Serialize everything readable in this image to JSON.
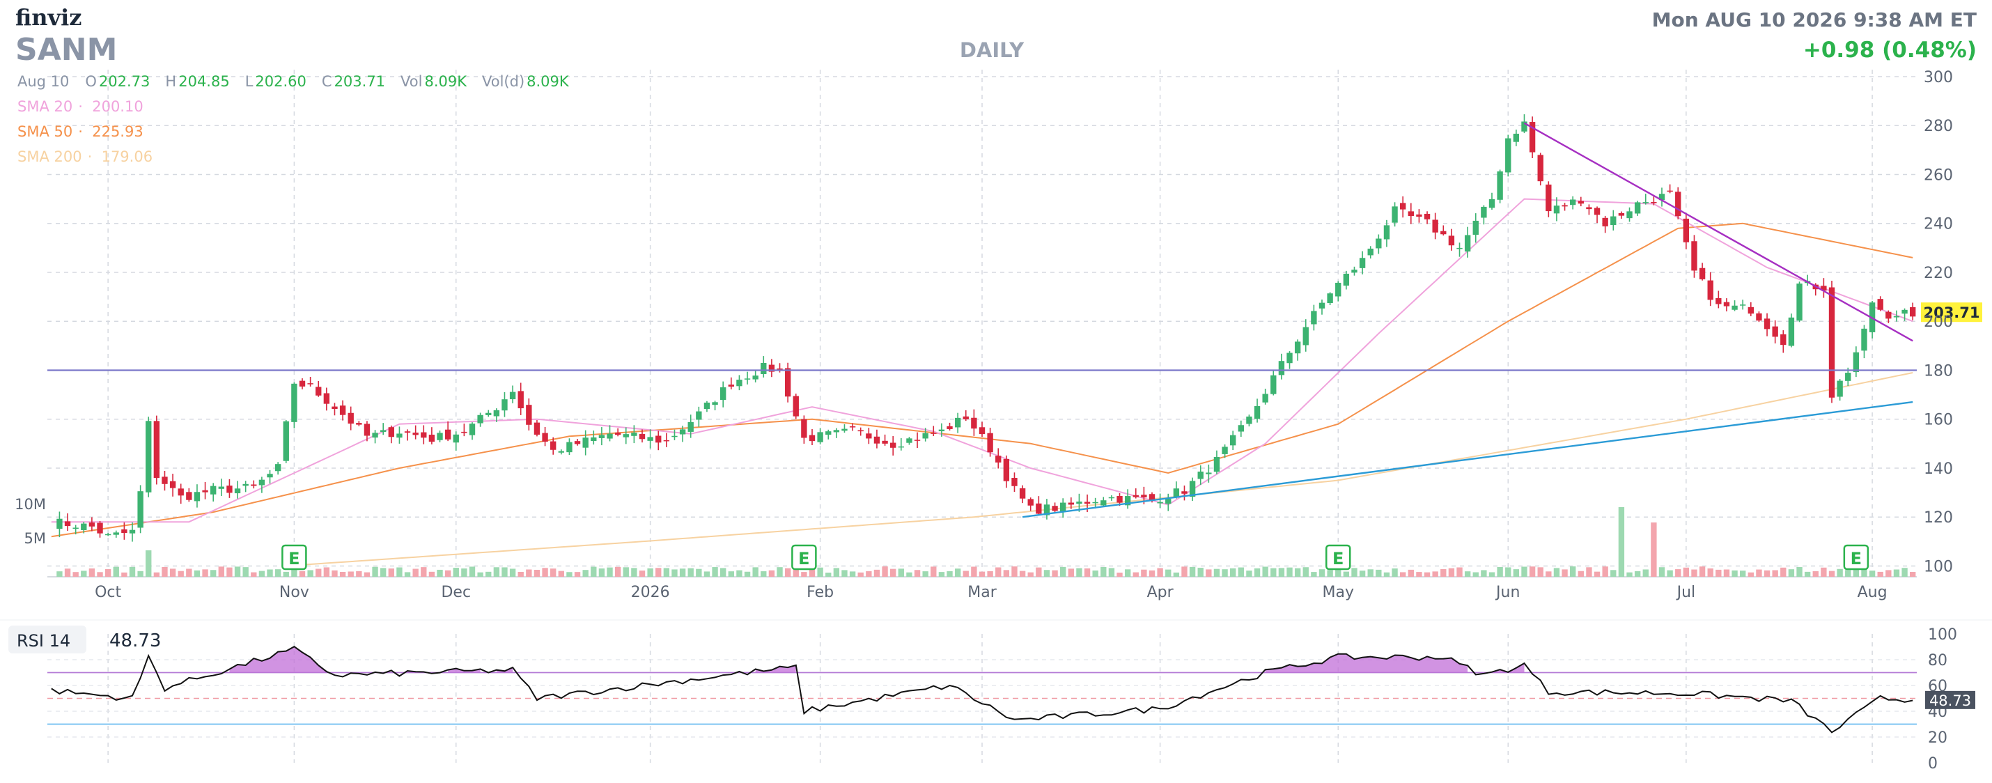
{
  "header": {
    "logo": "finviz",
    "ticker": "SANM",
    "timeframe": "DAILY",
    "datetime": "Mon AUG 10 2026 9:38 AM ET",
    "change": "+0.98 (0.48%)"
  },
  "ohlc": [
    {
      "label": "Aug 10",
      "value": ""
    },
    {
      "label": "O",
      "value": "202.73"
    },
    {
      "label": "H",
      "value": "204.85"
    },
    {
      "label": "L",
      "value": "202.60"
    },
    {
      "label": "C",
      "value": "203.71"
    },
    {
      "label": "Vol",
      "value": "8.09K"
    },
    {
      "label": "Vol(d)",
      "value": "8.09K"
    }
  ],
  "sma_legend": [
    {
      "label": "SMA 20",
      "value": "200.10",
      "color": "#f0a3dc"
    },
    {
      "label": "SMA 50",
      "value": "225.93",
      "color": "#f5914b"
    },
    {
      "label": "SMA 200",
      "value": "179.06",
      "color": "#f7d2a1"
    }
  ],
  "price_tag": "203.71",
  "rsi": {
    "label": "RSI 14",
    "value": "48.73",
    "tag": "48.73",
    "overbought": 70,
    "oversold": 30
  },
  "colors": {
    "up": "#3cb371",
    "down": "#d7263d",
    "sma20": "#f0a3dc",
    "sma50": "#f5914b",
    "sma200": "#f7d2a1",
    "hline": "#7b78c9",
    "trend_up": "#2b9bd6",
    "trend_down": "#a62fc2",
    "rsi_fill": "#c26fd8"
  },
  "chart_data": {
    "type": "candlestick",
    "price_axis": {
      "ticks": [
        100,
        120,
        140,
        160,
        180,
        200,
        220,
        240,
        260,
        280,
        300
      ],
      "range": [
        95,
        300
      ]
    },
    "volume_axis": {
      "ticks": [
        "5M",
        "10M"
      ]
    },
    "rsi_axis": {
      "ticks": [
        0,
        20,
        40,
        60,
        80,
        100
      ]
    },
    "x_labels": [
      "Oct",
      "Nov",
      "Dec",
      "2026",
      "Feb",
      "Mar",
      "Apr",
      "May",
      "Jun",
      "Jul",
      "Aug"
    ],
    "earnings_markers": [
      "E",
      "E",
      "E",
      "E"
    ],
    "horizontal_line": 180,
    "trendlines": [
      {
        "name": "support",
        "from": [
          "Mar 09",
          120
        ],
        "to": [
          "Aug 10",
          167
        ]
      },
      {
        "name": "resistance",
        "from": [
          "Jun 03",
          281
        ],
        "to": [
          "Aug 10",
          192
        ]
      }
    ],
    "close_anchors": [
      [
        "Sep 22",
        118
      ],
      [
        "Sep 29",
        116
      ],
      [
        "Oct 01",
        112
      ],
      [
        "Oct 06",
        114
      ],
      [
        "Oct 07",
        130
      ],
      [
        "Oct 08",
        158
      ],
      [
        "Oct 09",
        137
      ],
      [
        "Oct 14",
        128
      ],
      [
        "Oct 20",
        131
      ],
      [
        "Oct 27",
        132
      ],
      [
        "Oct 30",
        140
      ],
      [
        "Nov 03",
        175
      ],
      [
        "Nov 05",
        173
      ],
      [
        "Nov 10",
        165
      ],
      [
        "Nov 14",
        153
      ],
      [
        "Nov 20",
        155
      ],
      [
        "Nov 26",
        152
      ],
      [
        "Dec 02",
        155
      ],
      [
        "Dec 08",
        165
      ],
      [
        "Dec 10",
        172
      ],
      [
        "Dec 12",
        158
      ],
      [
        "Dec 17",
        147
      ],
      [
        "Dec 26",
        154
      ],
      [
        "Jan 06",
        151
      ],
      [
        "Jan 12",
        162
      ],
      [
        "Jan 16",
        175
      ],
      [
        "Jan 22",
        181
      ],
      [
        "Jan 26",
        180
      ],
      [
        "Jan 29",
        152
      ],
      [
        "Feb 06",
        155
      ],
      [
        "Feb 13",
        150
      ],
      [
        "Feb 23",
        155
      ],
      [
        "Feb 26",
        161
      ],
      [
        "Mar 03",
        148
      ],
      [
        "Mar 06",
        131
      ],
      [
        "Mar 10",
        123
      ],
      [
        "Mar 16",
        124
      ],
      [
        "Mar 23",
        128
      ],
      [
        "Mar 31",
        127
      ],
      [
        "Apr 06",
        131
      ],
      [
        "Apr 10",
        143
      ],
      [
        "Apr 16",
        160
      ],
      [
        "Apr 21",
        177
      ],
      [
        "Apr 27",
        198
      ],
      [
        "Apr 30",
        212
      ],
      [
        "May 06",
        225
      ],
      [
        "May 12",
        245
      ],
      [
        "May 18",
        240
      ],
      [
        "May 22",
        230
      ],
      [
        "May 28",
        250
      ],
      [
        "Jun 01",
        275
      ],
      [
        "Jun 03",
        281
      ],
      [
        "Jun 08",
        245
      ],
      [
        "Jun 12",
        250
      ],
      [
        "Jun 17",
        240
      ],
      [
        "Jun 23",
        248
      ],
      [
        "Jun 29",
        252
      ],
      [
        "Jul 02",
        220
      ],
      [
        "Jul 07",
        206
      ],
      [
        "Jul 13",
        205
      ],
      [
        "Jul 17",
        192
      ],
      [
        "Jul 21",
        215
      ],
      [
        "Jul 24",
        214
      ],
      [
        "Jul 27",
        170
      ],
      [
        "Jul 29",
        180
      ],
      [
        "Jul 31",
        195
      ],
      [
        "Aug 03",
        208
      ],
      [
        "Aug 05",
        200
      ],
      [
        "Aug 07",
        205
      ],
      [
        "Aug 10",
        203.71
      ]
    ],
    "sma20_anchors": [
      [
        "Sep 22",
        118
      ],
      [
        "Oct 15",
        118
      ],
      [
        "Nov 03",
        138
      ],
      [
        "Nov 20",
        158
      ],
      [
        "Dec 15",
        160
      ],
      [
        "Jan 10",
        154
      ],
      [
        "Jan 30",
        165
      ],
      [
        "Feb 20",
        155
      ],
      [
        "Mar 10",
        140
      ],
      [
        "Apr 02",
        125
      ],
      [
        "Apr 20",
        150
      ],
      [
        "May 10",
        195
      ],
      [
        "Jun 03",
        250
      ],
      [
        "Jun 25",
        248
      ],
      [
        "Jul 15",
        222
      ],
      [
        "Aug 10",
        200
      ]
    ],
    "sma50_anchors": [
      [
        "Sep 22",
        112
      ],
      [
        "Oct 20",
        122
      ],
      [
        "Nov 20",
        140
      ],
      [
        "Dec 20",
        153
      ],
      [
        "Jan 30",
        160
      ],
      [
        "Mar 10",
        150
      ],
      [
        "Apr 02",
        138
      ],
      [
        "May 01",
        158
      ],
      [
        "Jun 01",
        200
      ],
      [
        "Jun 30",
        238
      ],
      [
        "Jul 10",
        240
      ],
      [
        "Aug 10",
        226
      ]
    ],
    "sma200_anchors": [
      [
        "Nov 01",
        100
      ],
      [
        "Jan 01",
        110
      ],
      [
        "Mar 01",
        120
      ],
      [
        "May 01",
        135
      ],
      [
        "Jul 01",
        160
      ],
      [
        "Aug 10",
        179
      ]
    ],
    "rsi_anchors": [
      [
        "Sep 22",
        56
      ],
      [
        "Oct 06",
        50
      ],
      [
        "Oct 08",
        82
      ],
      [
        "Oct 10",
        58
      ],
      [
        "Nov 03",
        88
      ],
      [
        "Nov 10",
        68
      ],
      [
        "Dec 10",
        72
      ],
      [
        "Dec 15",
        50
      ],
      [
        "Jan 20",
        70
      ],
      [
        "Jan 28",
        74
      ],
      [
        "Jan 29",
        40
      ],
      [
        "Feb 24",
        60
      ],
      [
        "Mar 06",
        33
      ],
      [
        "Mar 20",
        38
      ],
      [
        "Apr 01",
        42
      ],
      [
        "Apr 20",
        70
      ],
      [
        "May 01",
        82
      ],
      [
        "May 20",
        82
      ],
      [
        "May 27",
        68
      ],
      [
        "Jun 03",
        76
      ],
      [
        "Jun 08",
        55
      ],
      [
        "Jul 01",
        54
      ],
      [
        "Jul 20",
        48
      ],
      [
        "Jul 27",
        24
      ],
      [
        "Aug 04",
        50
      ],
      [
        "Aug 10",
        48.73
      ]
    ]
  }
}
